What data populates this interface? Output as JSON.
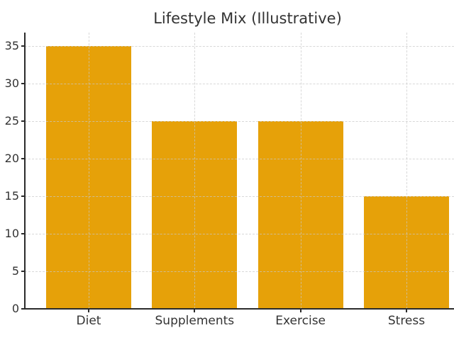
{
  "chart_data": {
    "type": "bar",
    "title": "Lifestyle Mix (Illustrative)",
    "categories": [
      "Diet",
      "Supplements",
      "Exercise",
      "Stress"
    ],
    "values": [
      35,
      25,
      25,
      15
    ],
    "xlabel": "",
    "ylabel": "",
    "ylim": [
      0,
      36.75
    ],
    "yticks": [
      0,
      5,
      10,
      15,
      20,
      25,
      30,
      35
    ],
    "grid": true,
    "grid_style": "dashed",
    "legend_position": "none",
    "colors": {
      "bar": "#E6A109",
      "grid": "#c8c8c8",
      "axis": "#2b2b2b",
      "text": "#333333",
      "background": "#ffffff"
    }
  }
}
